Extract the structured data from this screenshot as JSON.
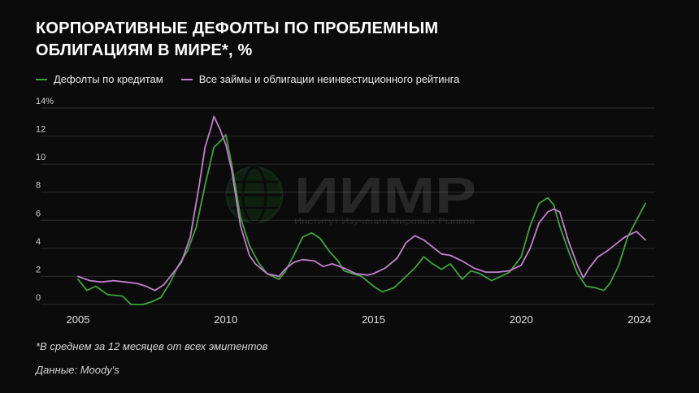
{
  "title": "Корпоративные дефолты по проблемным облигациям в мире*, %",
  "watermark": {
    "name": "ИИМР",
    "subtitle": "Институт Изучения Мировых Рынков"
  },
  "footnote": "*В среднем за 12 месяцев от всех эмитентов",
  "source": "Данные: Moody's",
  "colors": {
    "background": "#0b0b0b",
    "green": "#3fa53b",
    "purple": "#c47fd0",
    "grid": "#2e2e2e"
  },
  "chart_data": {
    "type": "line",
    "title": "Корпоративные дефолты по проблемным облигациям в мире*, %",
    "xlabel": "",
    "ylabel": "",
    "xlim": [
      2005,
      2024.2
    ],
    "ylim": [
      0,
      14
    ],
    "x_ticks": [
      "2005",
      "2010",
      "2015",
      "2020",
      "2024"
    ],
    "y_ticks": [
      "0",
      "2",
      "4",
      "6",
      "8",
      "10",
      "12",
      "14%"
    ],
    "grid": true,
    "legend": "top-left",
    "series": [
      {
        "name": "Дефолты по кредитам",
        "color": "#3fa53b",
        "x": [
          2005.0,
          2005.3,
          2005.6,
          2006.0,
          2006.5,
          2006.8,
          2007.2,
          2007.5,
          2007.8,
          2008.1,
          2008.4,
          2008.7,
          2009.0,
          2009.3,
          2009.6,
          2009.8,
          2010.0,
          2010.2,
          2010.5,
          2010.8,
          2011.1,
          2011.4,
          2011.8,
          2012.0,
          2012.3,
          2012.6,
          2012.9,
          2013.2,
          2013.5,
          2013.8,
          2014.0,
          2014.3,
          2014.6,
          2015.0,
          2015.3,
          2015.7,
          2016.0,
          2016.4,
          2016.7,
          2017.0,
          2017.3,
          2017.6,
          2018.0,
          2018.3,
          2018.6,
          2019.0,
          2019.3,
          2019.6,
          2020.0,
          2020.3,
          2020.6,
          2020.9,
          2021.1,
          2021.3,
          2021.6,
          2021.9,
          2022.2,
          2022.5,
          2022.8,
          2023.0,
          2023.3,
          2023.6,
          2023.9,
          2024.2
        ],
        "values": [
          1.8,
          1.0,
          1.3,
          0.7,
          0.6,
          0.0,
          0.0,
          0.2,
          0.5,
          1.5,
          2.8,
          3.8,
          5.5,
          8.5,
          11.2,
          11.6,
          12.1,
          10.0,
          6.2,
          4.2,
          3.0,
          2.2,
          1.8,
          2.3,
          3.5,
          4.8,
          5.1,
          4.7,
          3.8,
          3.1,
          2.4,
          2.2,
          2.0,
          1.3,
          0.9,
          1.2,
          1.8,
          2.6,
          3.4,
          2.9,
          2.5,
          2.9,
          1.8,
          2.4,
          2.2,
          1.7,
          2.0,
          2.3,
          3.4,
          5.6,
          7.2,
          7.6,
          7.1,
          5.6,
          3.8,
          2.2,
          1.3,
          1.2,
          1.0,
          1.5,
          2.8,
          4.8,
          6.0,
          7.2
        ]
      },
      {
        "name": "Все займы и облигации неинвестиционного рейтинга",
        "color": "#c47fd0",
        "x": [
          2005.0,
          2005.4,
          2005.8,
          2006.2,
          2006.6,
          2007.0,
          2007.3,
          2007.6,
          2007.9,
          2008.2,
          2008.5,
          2008.8,
          2009.1,
          2009.3,
          2009.5,
          2009.6,
          2009.8,
          2010.0,
          2010.2,
          2010.5,
          2010.8,
          2011.0,
          2011.4,
          2011.8,
          2012.0,
          2012.3,
          2012.6,
          2013.0,
          2013.3,
          2013.6,
          2014.0,
          2014.4,
          2014.8,
          2015.0,
          2015.4,
          2015.8,
          2016.1,
          2016.4,
          2016.7,
          2017.0,
          2017.3,
          2017.6,
          2018.0,
          2018.4,
          2018.8,
          2019.2,
          2019.6,
          2020.0,
          2020.3,
          2020.6,
          2020.9,
          2021.1,
          2021.3,
          2021.6,
          2021.9,
          2022.1,
          2022.3,
          2022.6,
          2022.9,
          2023.2,
          2023.5,
          2023.7,
          2023.9,
          2024.2
        ],
        "values": [
          2.0,
          1.7,
          1.6,
          1.7,
          1.6,
          1.5,
          1.3,
          1.0,
          1.4,
          2.2,
          3.0,
          4.8,
          8.5,
          11.2,
          12.6,
          13.4,
          12.5,
          11.4,
          9.6,
          5.6,
          3.5,
          2.9,
          2.2,
          2.0,
          2.5,
          3.0,
          3.2,
          3.1,
          2.7,
          2.9,
          2.6,
          2.2,
          2.1,
          2.2,
          2.6,
          3.3,
          4.4,
          4.9,
          4.6,
          4.1,
          3.6,
          3.5,
          3.1,
          2.6,
          2.3,
          2.3,
          2.4,
          2.8,
          4.0,
          5.8,
          6.6,
          6.8,
          6.6,
          4.5,
          2.8,
          1.9,
          2.6,
          3.4,
          3.8,
          4.3,
          4.8,
          5.0,
          5.2,
          4.6
        ]
      }
    ]
  }
}
